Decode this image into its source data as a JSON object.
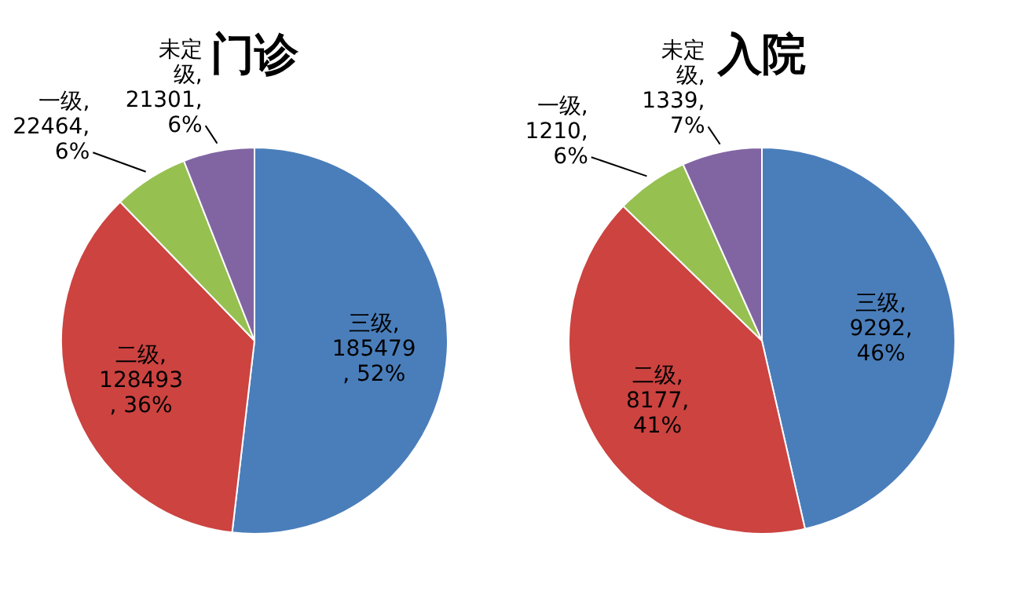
{
  "chart_data": [
    {
      "type": "pie",
      "title": "门诊",
      "categories": [
        "三级",
        "二级",
        "一级",
        "未定级"
      ],
      "values": [
        185479,
        128493,
        22464,
        21301
      ],
      "colors": [
        "#4a7ebb",
        "#cc4340",
        "#96c050",
        "#8165a3"
      ],
      "value_labels": [
        ",\n185479\n, 52%",
        ",\n128493\n, 36%",
        ",\n22464,\n6%",
        ",\n21301,\n6%"
      ]
    },
    {
      "type": "pie",
      "title": "入院",
      "categories": [
        "三级",
        "二级",
        "一级",
        "未定级"
      ],
      "values": [
        9292,
        8177,
        1210,
        1339
      ],
      "colors": [
        "#4a7ebb",
        "#cc4340",
        "#96c050",
        "#8165a3"
      ],
      "value_labels": [
        ",\n9292,\n46%",
        ",\n8177,\n41%",
        ",\n1210,\n6%",
        ",\n1339,\n7%"
      ]
    }
  ]
}
